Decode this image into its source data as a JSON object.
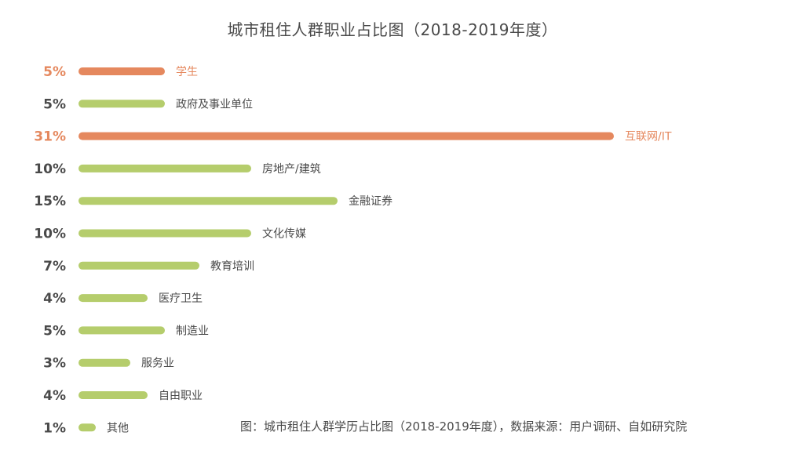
{
  "chart_data": {
    "type": "bar",
    "orientation": "horizontal",
    "title": "城市租住人群职业占比图（2018-2019年度）",
    "value_unit": "%",
    "categories": [
      "学生",
      "政府及事业单位",
      "互联网/IT",
      "房地产/建筑",
      "金融证券",
      "文化传媒",
      "教育培训",
      "医疗卫生",
      "制造业",
      "服务业",
      "自由职业",
      "其他"
    ],
    "values": [
      5,
      5,
      31,
      10,
      15,
      10,
      7,
      4,
      5,
      3,
      4,
      1
    ],
    "value_labels": [
      "5%",
      "5%",
      "31%",
      "10%",
      "15%",
      "10%",
      "7%",
      "4%",
      "5%",
      "3%",
      "4%",
      "1%"
    ],
    "highlighted": [
      true,
      false,
      true,
      false,
      false,
      false,
      false,
      false,
      false,
      false,
      false,
      false
    ],
    "axis_visible": false,
    "grid": false,
    "xlim": [
      0,
      31
    ]
  },
  "colors": {
    "highlight": "#e5885e",
    "normal": "#b5cd6c",
    "value_text": "#4a4a4a",
    "category_text": "#4a4a4a"
  },
  "footnote": "图：城市租住人群学历占比图（2018-2019年度），数据来源：用户调研、自如研究院"
}
